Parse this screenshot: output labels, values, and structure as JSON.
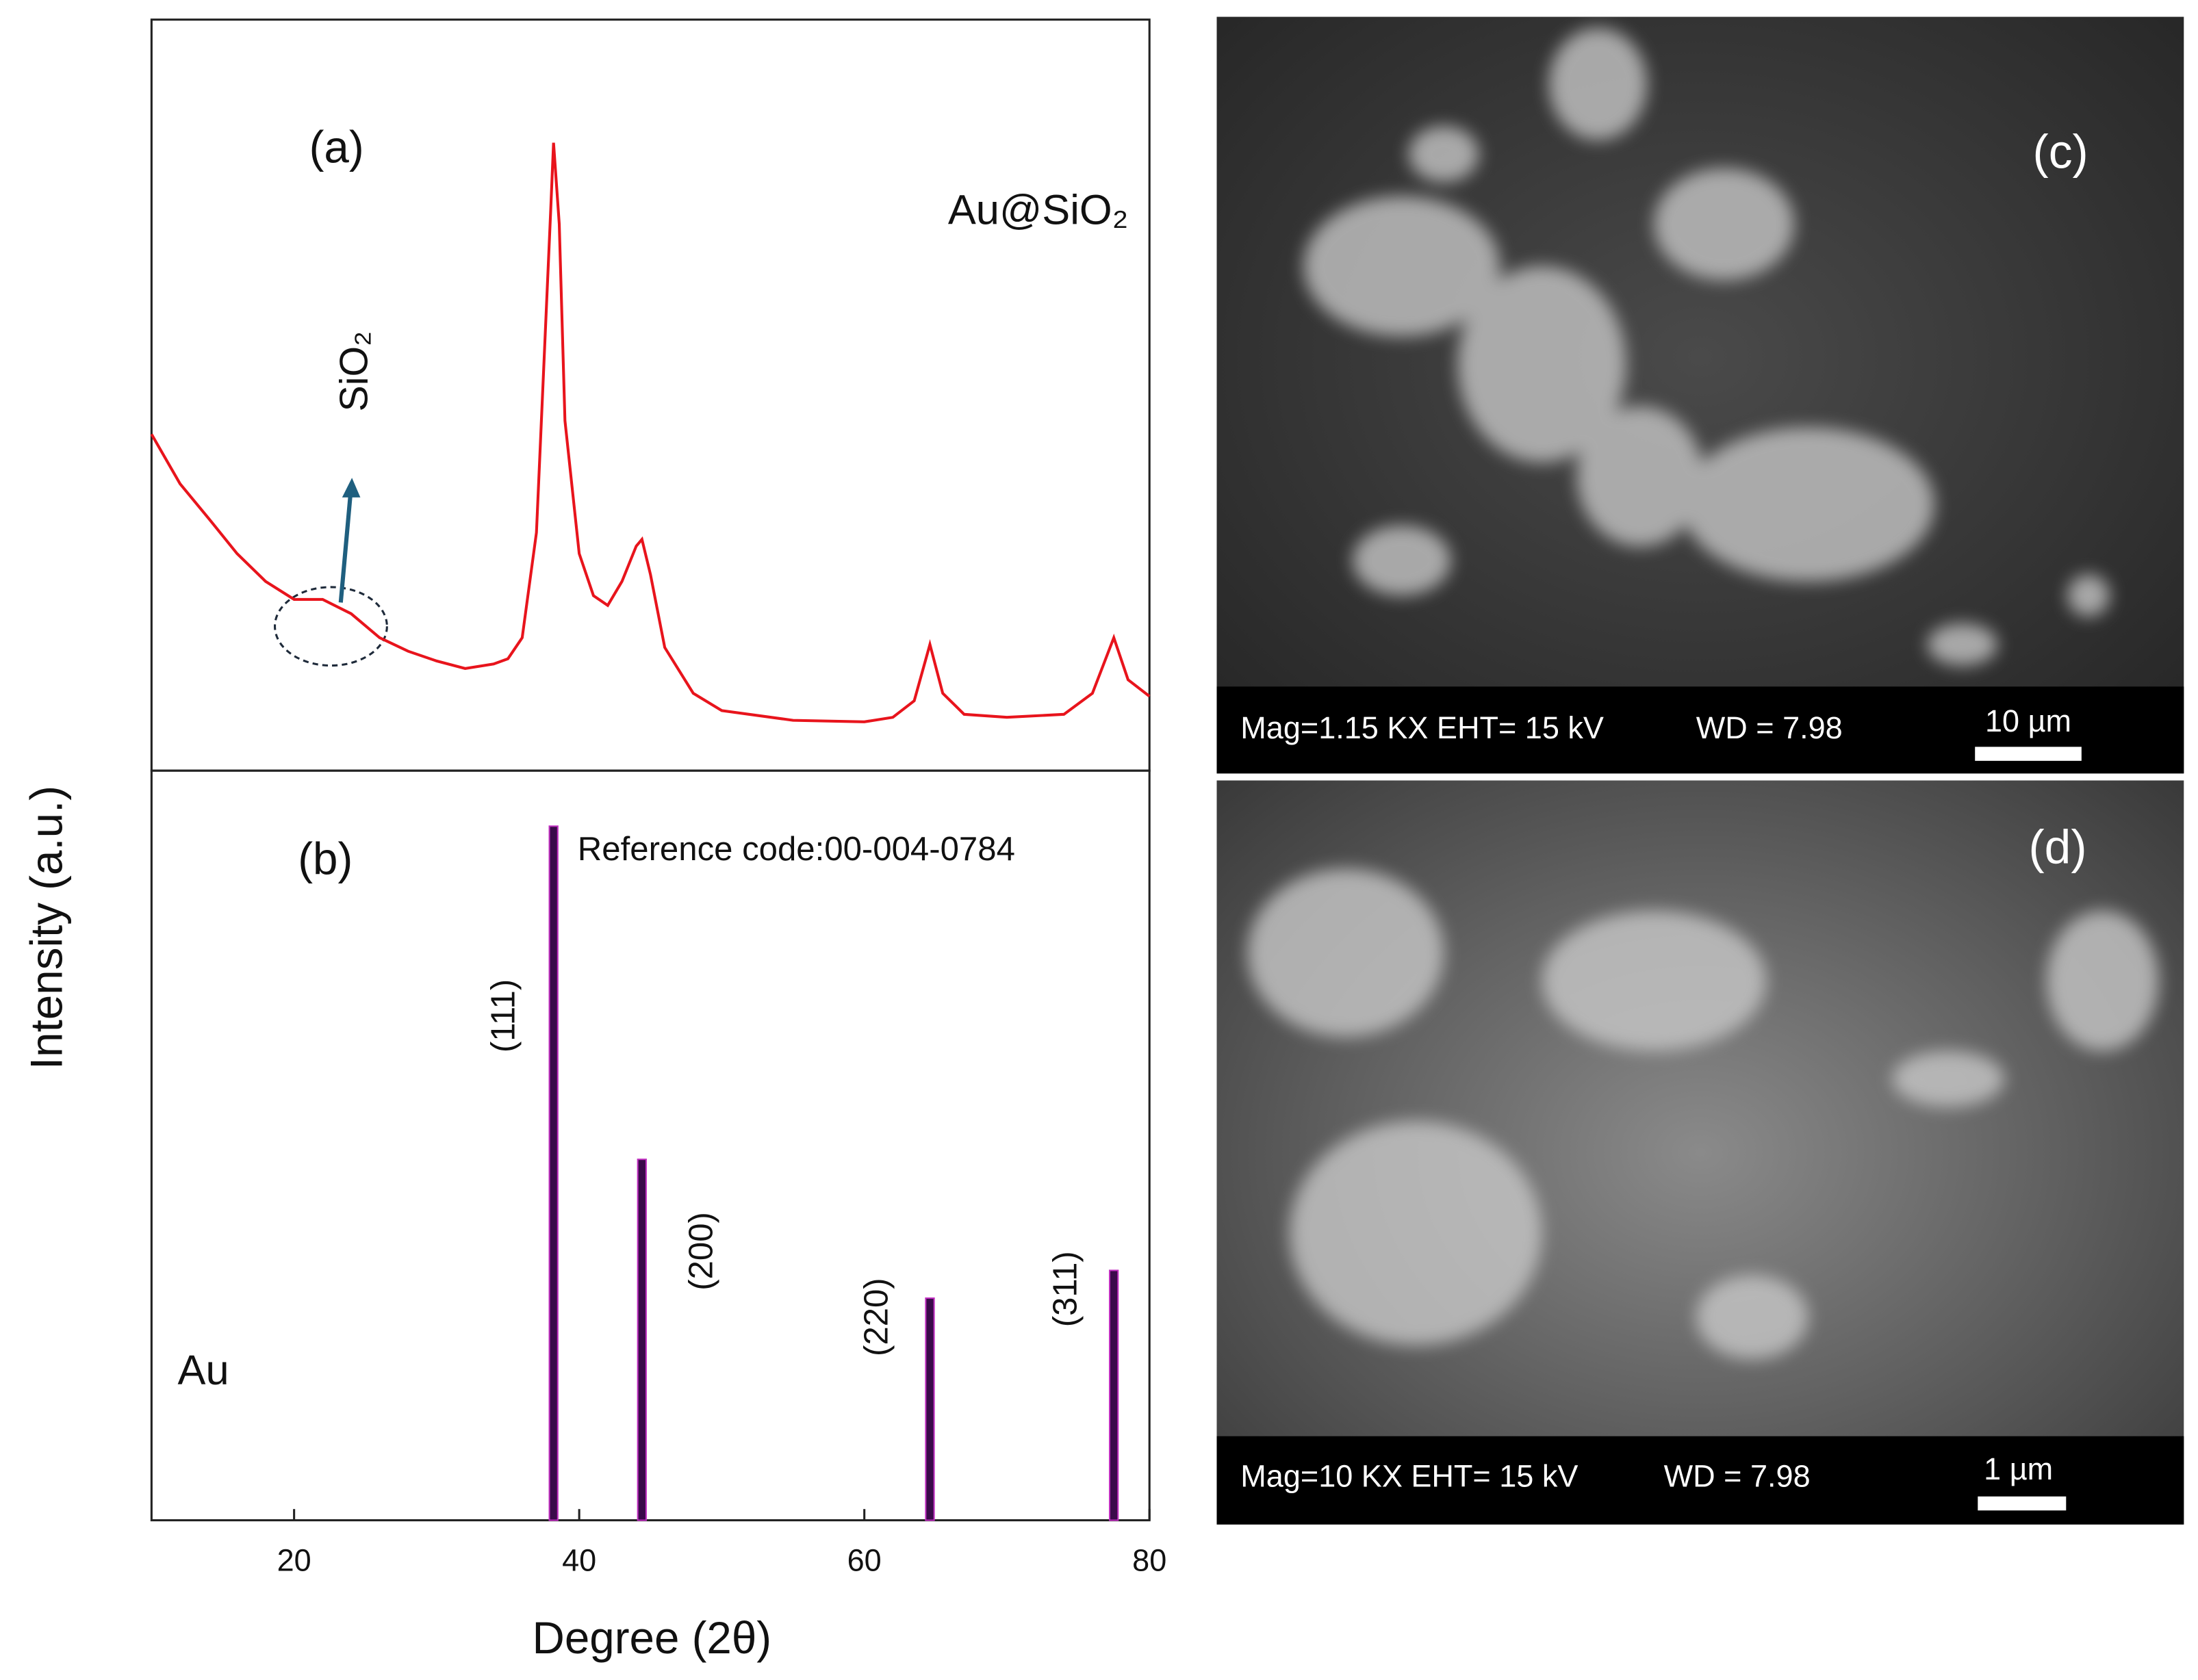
{
  "chart_data": [
    {
      "type": "line",
      "panel_label": "(a)",
      "annotation": "SiO₂",
      "x": [
        10,
        12,
        14,
        16,
        18,
        20,
        22,
        24,
        26,
        28,
        30,
        32,
        34,
        35,
        36,
        37,
        38,
        38.2,
        38.6,
        39,
        40,
        41,
        42,
        43,
        44,
        44.4,
        45,
        46,
        48,
        50,
        55,
        60,
        62,
        63.5,
        64.6,
        65.5,
        67,
        70,
        74,
        76,
        77.5,
        78.5,
        80
      ],
      "series": [
        {
          "name": "Au@SiO₂",
          "color": "#e8141c",
          "values": [
            44.8,
            38.2,
            33.6,
            28.9,
            25.2,
            22.8,
            22.8,
            20.9,
            17.7,
            15.9,
            14.6,
            13.6,
            14.2,
            14.9,
            17.7,
            31.7,
            74.6,
            83.6,
            72.8,
            46.6,
            28.9,
            23.3,
            22.0,
            25.2,
            29.9,
            30.8,
            26.1,
            16.4,
            10.3,
            8.0,
            6.7,
            6.5,
            7.1,
            9.3,
            16.8,
            10.3,
            7.5,
            7.1,
            7.5,
            10.3,
            17.7,
            12.1,
            9.9
          ]
        }
      ],
      "xlim": [
        10,
        80
      ],
      "ylim": [
        0,
        100
      ]
    },
    {
      "type": "stick",
      "panel_label": "(b)",
      "annotation": "Reference code:00-004-0784",
      "xlabel": "Degree (2θ)",
      "ylabel": "Intensity (a.u.)",
      "x": [
        38.2,
        44.4,
        64.6,
        77.5
      ],
      "peak_labels": [
        "(111)",
        "(200)",
        "(220)",
        "(311)"
      ],
      "series": [
        {
          "name": "Au",
          "color": "#3a0a4a",
          "values": [
            100,
            52,
            32,
            36
          ]
        }
      ],
      "xlim": [
        10,
        80
      ],
      "ylim": [
        0,
        108
      ],
      "xticks": [
        20,
        40,
        60,
        80
      ]
    }
  ],
  "images": [
    {
      "label": "(c)",
      "caption": "Mag=1.15 KX EHT= 15 kV",
      "wd": "WD = 7.98",
      "scale": "10 µm"
    },
    {
      "label": "(d)",
      "caption": "Mag=10 KX EHT= 15 kV",
      "wd": "WD = 7.98",
      "scale": "1 µm"
    }
  ]
}
